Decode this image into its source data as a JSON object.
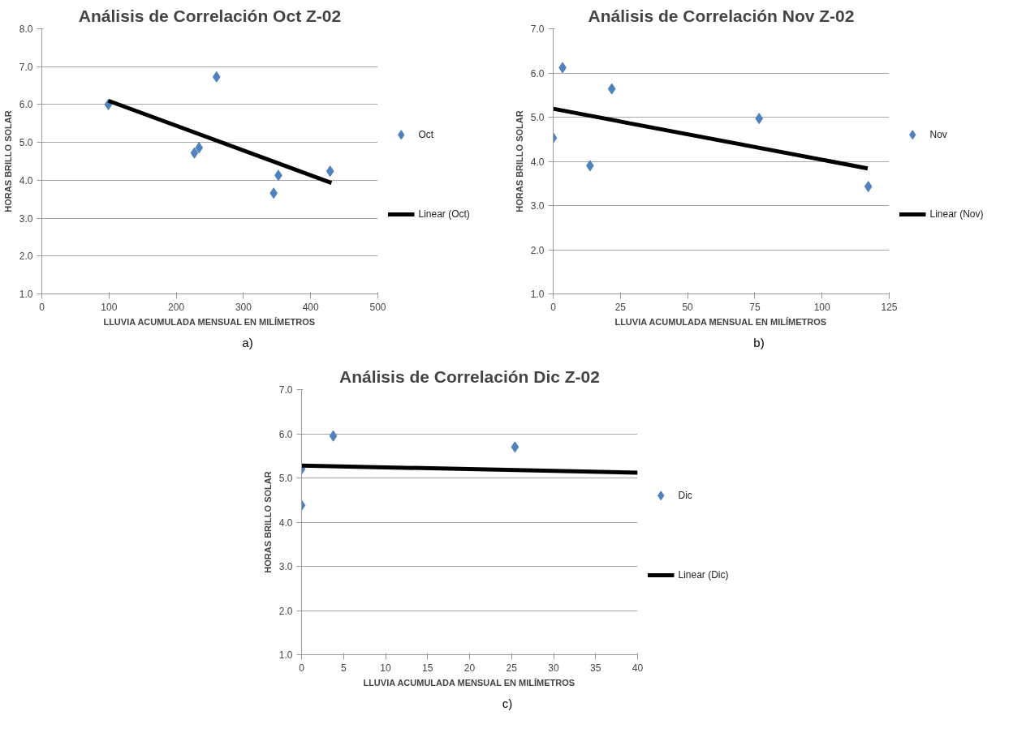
{
  "chart_data": [
    {
      "type": "scatter",
      "title": "Análisis de Correlación Oct Z-02",
      "xlabel": "LLUVIA ACUMULADA MENSUAL EN MILÍMETROS",
      "ylabel": "HORAS BRILLO SOLAR",
      "xlim": [
        0,
        500
      ],
      "xticks": [
        0,
        100,
        200,
        300,
        400,
        500
      ],
      "ylim": [
        1,
        8
      ],
      "yticks": [
        {
          "value": 1,
          "label": "1.0"
        },
        {
          "value": 2,
          "label": "2.0"
        },
        {
          "value": 3,
          "label": "3.0"
        },
        {
          "value": 4,
          "label": "4.0"
        },
        {
          "value": 5,
          "label": "5.0"
        },
        {
          "value": 6,
          "label": "6.0"
        },
        {
          "value": 7,
          "label": "7.0"
        },
        {
          "value": 8,
          "label": "8.0"
        }
      ],
      "grid": "y",
      "legend": "right",
      "annotations": [
        "a)"
      ],
      "series": [
        {
          "name": "Oct",
          "marker": "diamond",
          "color": "#4f81bd",
          "x": [
            99,
            260,
            227,
            234,
            352,
            345,
            429
          ],
          "values": [
            6.0,
            6.73,
            4.72,
            4.86,
            4.13,
            3.66,
            4.24
          ]
        },
        {
          "name": "Linear (Oct)",
          "type": "line",
          "marker": "none",
          "color": "#000000",
          "x": [
            99,
            431
          ],
          "values": [
            6.1,
            3.93
          ]
        }
      ]
    },
    {
      "type": "scatter",
      "title": "Análisis de Correlación Nov Z-02",
      "xlabel": "LLUVIA ACUMULADA MENSUAL EN MILÍMETROS",
      "ylabel": "HORAS BRILLO SOLAR",
      "xlim": [
        0,
        125
      ],
      "xticks": [
        0,
        25,
        50,
        75,
        100,
        125
      ],
      "ylim": [
        1,
        7
      ],
      "yticks": [
        {
          "value": 1,
          "label": "1.0"
        },
        {
          "value": 2,
          "label": "2.0"
        },
        {
          "value": 3,
          "label": "3.0"
        },
        {
          "value": 4,
          "label": "4.0"
        },
        {
          "value": 5,
          "label": "5.0"
        },
        {
          "value": 6,
          "label": "6.0"
        },
        {
          "value": 7,
          "label": "7.0"
        }
      ],
      "grid": "y",
      "legend": "right",
      "annotations": [
        "b)"
      ],
      "series": [
        {
          "name": "Nov",
          "marker": "diamond",
          "color": "#4f81bd",
          "x": [
            0,
            3.5,
            13.7,
            21.8,
            76.6,
            117.2
          ],
          "values": [
            4.53,
            6.12,
            3.9,
            5.64,
            4.97,
            3.43
          ]
        },
        {
          "name": "Linear (Nov)",
          "type": "line",
          "marker": "none",
          "color": "#000000",
          "x": [
            0,
            117
          ],
          "values": [
            5.19,
            3.84
          ]
        }
      ]
    },
    {
      "type": "scatter",
      "title": "Análisis de Correlación Dic Z-02",
      "xlabel": "LLUVIA ACUMULADA MENSUAL EN MILÍMETROS",
      "ylabel": "HORAS BRILLO SOLAR",
      "xlim": [
        0,
        40
      ],
      "xticks": [
        0,
        5,
        10,
        15,
        20,
        25,
        30,
        35,
        40
      ],
      "ylim": [
        1,
        7
      ],
      "yticks": [
        {
          "value": 1,
          "label": "1.0"
        },
        {
          "value": 2,
          "label": "2.0"
        },
        {
          "value": 3,
          "label": "3.0"
        },
        {
          "value": 4,
          "label": "4.0"
        },
        {
          "value": 5,
          "label": "5.0"
        },
        {
          "value": 6,
          "label": "6.0"
        },
        {
          "value": 7,
          "label": "7.0"
        }
      ],
      "grid": "y",
      "legend": "right",
      "annotations": [
        "c)"
      ],
      "series": [
        {
          "name": "Dic",
          "marker": "diamond",
          "color": "#4f81bd",
          "x": [
            0,
            0,
            3.77,
            25.4
          ],
          "values": [
            5.2,
            4.38,
            5.95,
            5.7
          ]
        },
        {
          "name": "Linear (Dic)",
          "type": "line",
          "marker": "none",
          "color": "#000000",
          "x": [
            0,
            40
          ],
          "values": [
            5.28,
            5.12
          ]
        }
      ]
    }
  ]
}
